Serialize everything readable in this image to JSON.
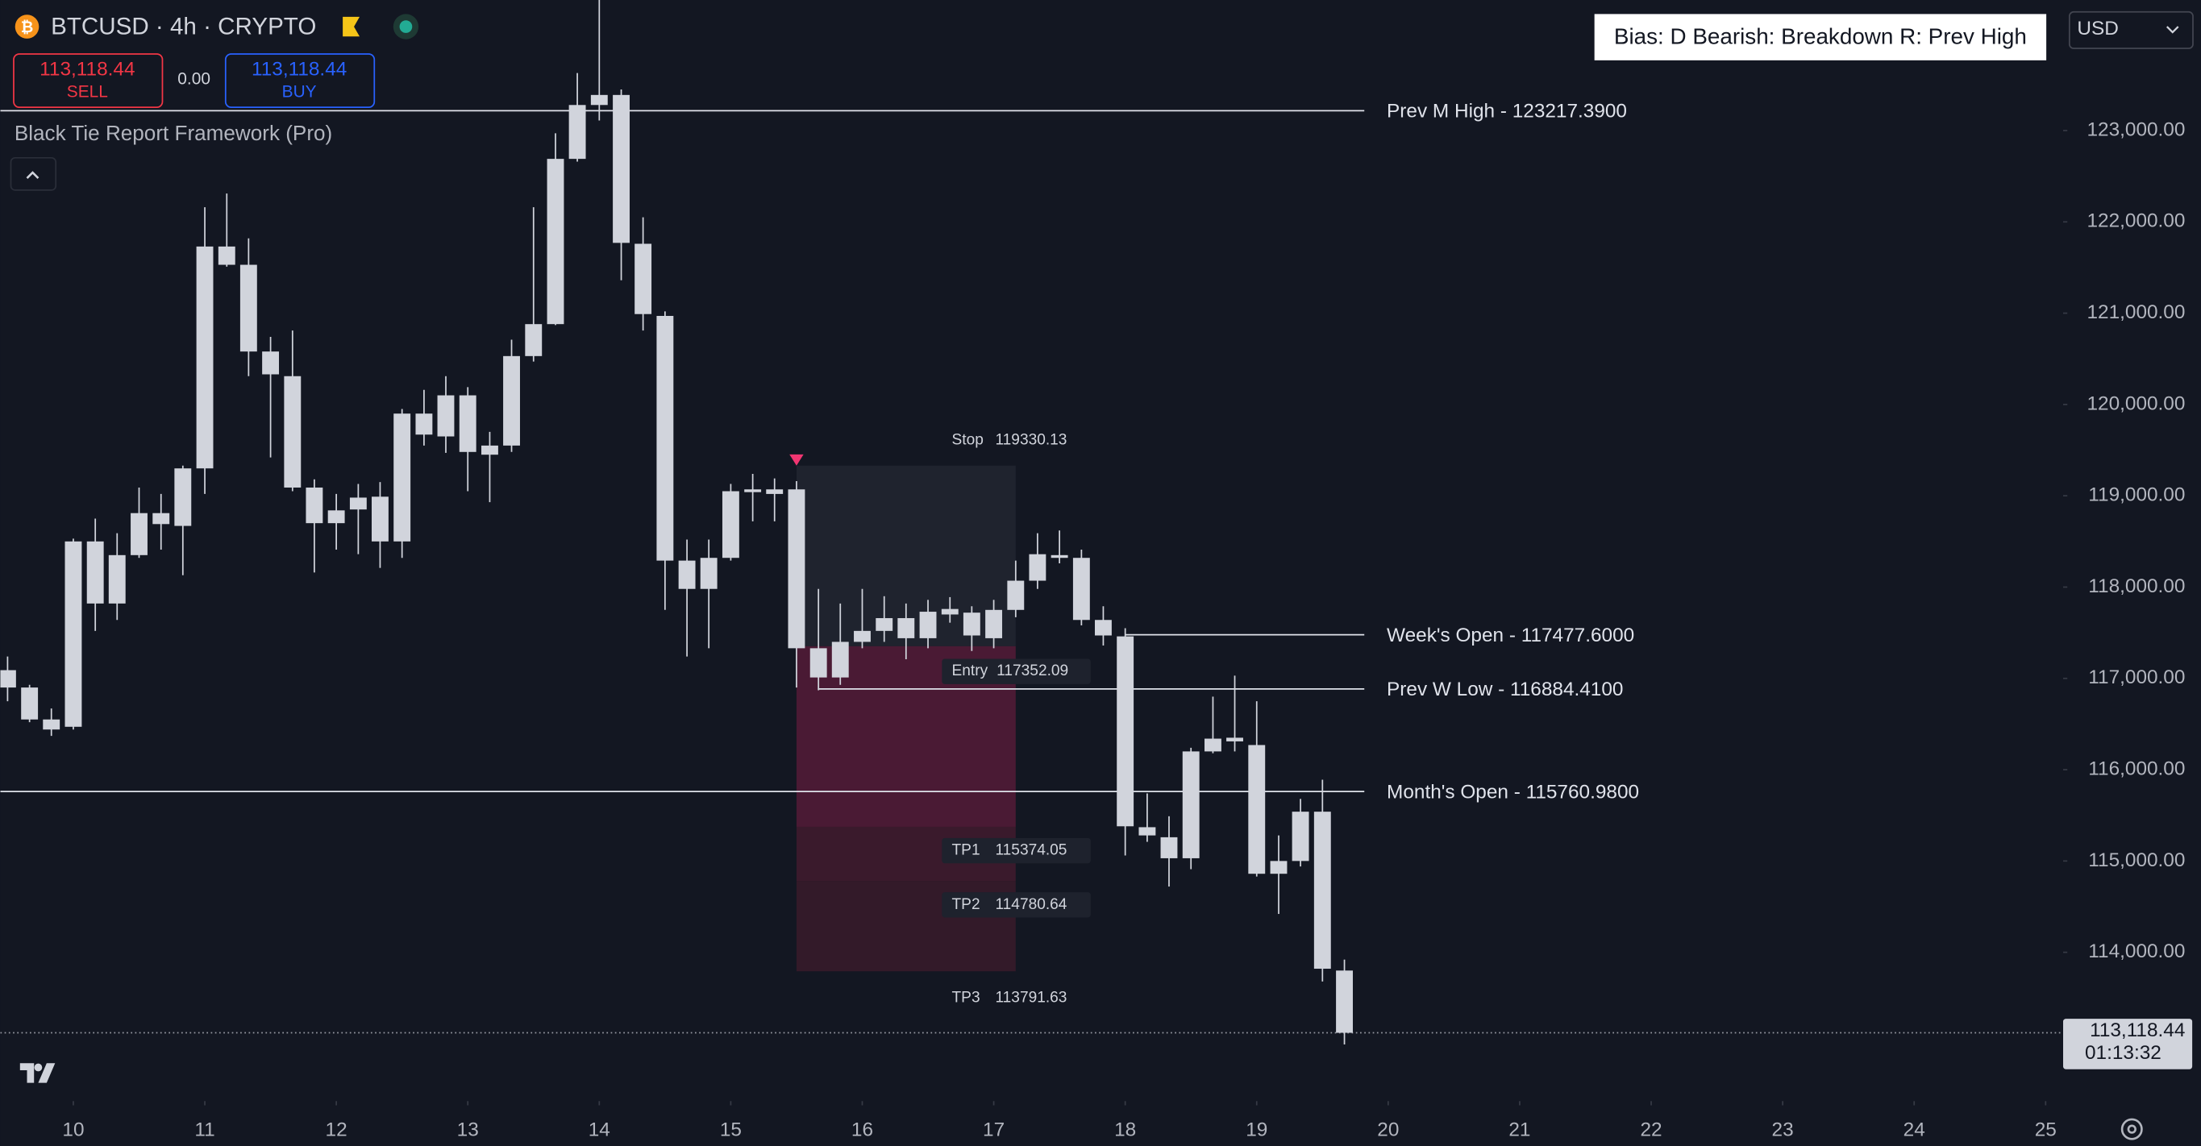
{
  "chart_data": {
    "type": "candlestick",
    "title": "BTCUSD · 4h · CRYPTO",
    "header": {
      "sell_price": "113,118.44",
      "sell": "SELL",
      "spread": "0.00",
      "buy_price": "113,118.44",
      "buy": "BUY",
      "indicator": "Black Tie Report Framework (Pro)",
      "bias": "Bias: D  Bearish: Breakdown  R: Prev High",
      "currency": "USD"
    },
    "color": "#d1d4dc",
    "x": [
      9.5,
      9.667,
      9.833,
      10,
      10.167,
      10.333,
      10.5,
      10.667,
      10.833,
      11,
      11.167,
      11.333,
      11.5,
      11.667,
      11.833,
      12,
      12.167,
      12.333,
      12.5,
      12.667,
      12.833,
      13,
      13.167,
      13.333,
      13.5,
      13.667,
      13.833,
      14,
      14.167,
      14.333,
      14.5,
      14.667,
      14.833,
      15,
      15.167,
      15.333,
      15.5,
      15.667,
      15.833,
      16,
      16.167,
      16.333,
      16.5,
      16.667,
      16.833,
      17,
      17.167,
      17.333,
      17.5,
      17.667,
      17.833,
      18,
      18.167,
      18.333,
      18.5,
      18.667,
      18.833,
      19,
      19.167,
      19.333,
      19.5,
      19.667
    ],
    "open": [
      117090,
      116900,
      116550,
      116470,
      118500,
      117820,
      118350,
      118810,
      118670,
      119300,
      121730,
      121530,
      120580,
      120310,
      119090,
      118700,
      118850,
      118990,
      118500,
      119900,
      119650,
      120100,
      119450,
      119550,
      120530,
      120880,
      122690,
      123280,
      123390,
      121760,
      120970,
      118290,
      117980,
      118320,
      119040,
      119020,
      119070,
      117330,
      117010,
      117400,
      117520,
      117660,
      117440,
      117700,
      117720,
      117440,
      117750,
      118070,
      118320,
      118320,
      117640,
      117460,
      115370,
      115260,
      115030,
      116200,
      116310,
      116270,
      114860,
      115000,
      115540,
      113800
    ],
    "high": [
      117240,
      116930,
      116670,
      118530,
      118750,
      118590,
      119090,
      119020,
      119330,
      122160,
      122310,
      121820,
      120740,
      120810,
      119180,
      119020,
      119130,
      119150,
      119950,
      120160,
      120310,
      120190,
      119700,
      120710,
      122160,
      122970,
      123630,
      124450,
      123450,
      122050,
      121020,
      118520,
      118520,
      119130,
      119240,
      119190,
      119160,
      117980,
      117820,
      117980,
      117900,
      117820,
      117860,
      117890,
      117790,
      117860,
      118290,
      118590,
      118620,
      118410,
      117790,
      117550,
      115740,
      115490,
      116240,
      116800,
      117030,
      116750,
      115280,
      115680,
      115890,
      113920
    ],
    "low": [
      116750,
      116520,
      116370,
      116440,
      117520,
      117640,
      118320,
      118410,
      118130,
      119020,
      121510,
      120310,
      119420,
      119050,
      118160,
      118410,
      118360,
      118210,
      118320,
      119550,
      119470,
      119050,
      118930,
      119480,
      120470,
      120870,
      122660,
      123110,
      121360,
      120810,
      117750,
      117240,
      117330,
      118290,
      118720,
      118720,
      116900,
      116870,
      116930,
      117330,
      117400,
      117210,
      117330,
      117610,
      117300,
      117330,
      117670,
      117980,
      118260,
      117580,
      117360,
      115060,
      115210,
      114720,
      114910,
      116180,
      116200,
      114830,
      114420,
      114940,
      113680,
      112990
    ],
    "close": [
      116900,
      116550,
      116440,
      118500,
      117820,
      118350,
      118810,
      118690,
      119300,
      121730,
      121530,
      120580,
      120330,
      119090,
      118700,
      118840,
      118980,
      118500,
      119900,
      119670,
      120100,
      119480,
      119550,
      120530,
      120880,
      122690,
      123280,
      123390,
      121770,
      120990,
      118290,
      117980,
      118320,
      119050,
      119070,
      119070,
      117330,
      117010,
      117400,
      117520,
      117660,
      117440,
      117730,
      117760,
      117470,
      117750,
      118070,
      118360,
      118350,
      117640,
      117470,
      115380,
      115280,
      115030,
      116200,
      116340,
      116350,
      114860,
      115000,
      115540,
      113820,
      113118.44
    ],
    "xlim": [
      9.445,
      25.133
    ],
    "xticks": [
      10,
      11,
      12,
      13,
      14,
      15,
      16,
      17,
      18,
      19,
      20,
      21,
      22,
      23,
      24,
      25
    ],
    "ylim": [
      112370,
      124430
    ],
    "yticks": [
      {
        "value": 114000,
        "label": "114,000.00"
      },
      {
        "value": 115000,
        "label": "115,000.00"
      },
      {
        "value": 116000,
        "label": "116,000.00"
      },
      {
        "value": 117000,
        "label": "117,000.00"
      },
      {
        "value": 118000,
        "label": "118,000.00"
      },
      {
        "value": 119000,
        "label": "119,000.00"
      },
      {
        "value": 120000,
        "label": "120,000.00"
      },
      {
        "value": 121000,
        "label": "121,000.00"
      },
      {
        "value": 122000,
        "label": "122,000.00"
      },
      {
        "value": 123000,
        "label": "123,000.00"
      }
    ],
    "last_price": {
      "value": 113118.44,
      "label": "113,118.44"
    },
    "countdown": "01:13:32",
    "levels": [
      {
        "label": "Prev M High - 123217.3900",
        "value": 123217.39
      },
      {
        "label": "Week's Open  - 117477.6000",
        "value": 117477.6,
        "from": 18
      },
      {
        "label": "Prev W Low  - 116884.4100",
        "value": 116884.41,
        "from": 15.667
      },
      {
        "label": "Month's Open  - 115760.9800",
        "value": 115760.98
      }
    ],
    "trade": {
      "start_x": 15.5,
      "end_x": 17.167,
      "stop_name": "Stop",
      "stop": 119330.13,
      "entry_name": "Entry",
      "entry": 117352.09,
      "tp1_name": "TP1",
      "tp1": 115374.05,
      "tp2_name": "TP2",
      "tp2": 114780.64,
      "tp3_name": "TP3",
      "tp3": 113791.63
    }
  }
}
